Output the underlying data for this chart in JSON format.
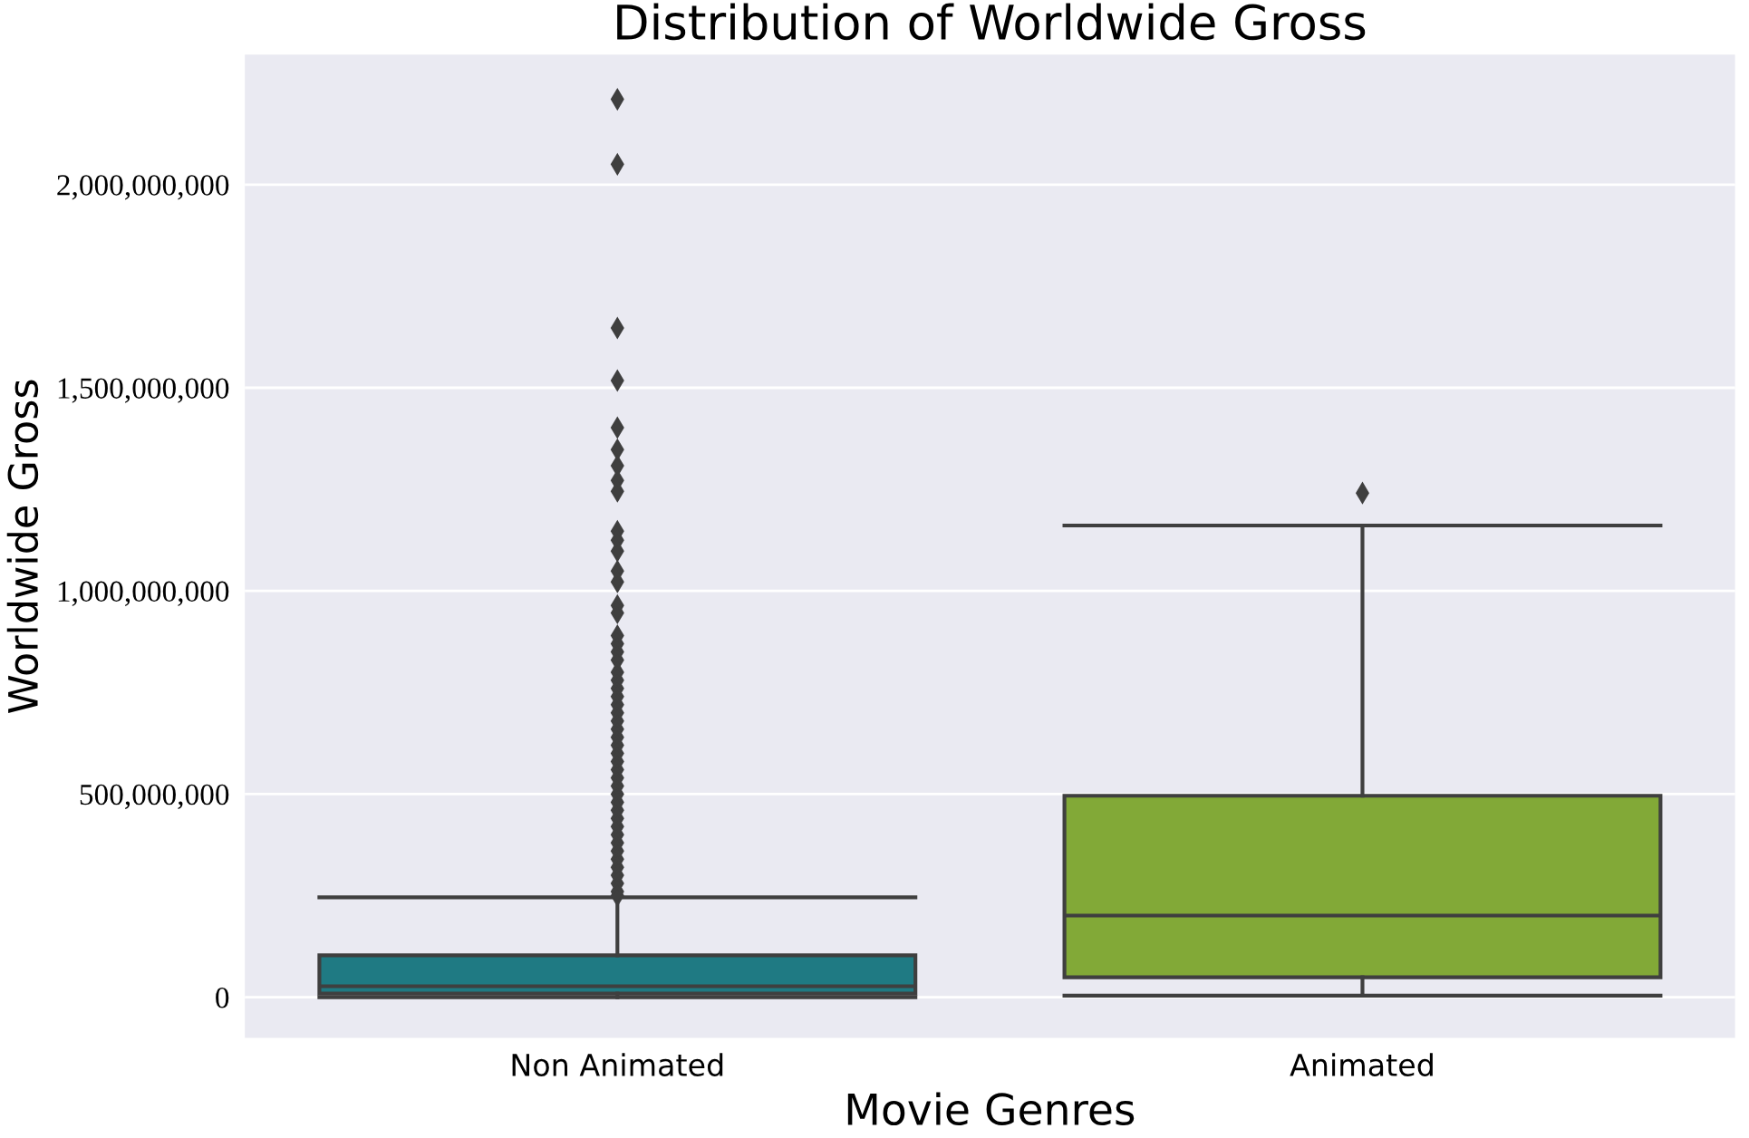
{
  "chart_data": {
    "type": "box",
    "title": "Distribution of Worldwide Gross",
    "xlabel": "Movie Genres",
    "ylabel": "Worldwide Gross",
    "categories": [
      "Non Animated",
      "Animated"
    ],
    "colors": [
      "#1f7a83",
      "#82a937"
    ],
    "boxes": [
      {
        "low": 0,
        "q1": 9000000,
        "median": 27000000,
        "q3": 103000000,
        "high": 246000000,
        "outliers": [
          2210000000,
          2050000000,
          1647000000,
          1518000000,
          1402000000,
          1348000000,
          1308000000,
          1272000000,
          1245000000,
          1147000000,
          1125000000,
          1098000000,
          1049000000,
          1022000000,
          964000000,
          946000000,
          890000000,
          870000000,
          850000000,
          830000000,
          800000000,
          780000000,
          760000000,
          740000000,
          720000000,
          700000000,
          680000000,
          660000000,
          640000000,
          620000000,
          600000000,
          580000000,
          560000000,
          540000000,
          520000000,
          500000000,
          480000000,
          460000000,
          440000000,
          420000000,
          400000000,
          380000000,
          360000000,
          340000000,
          320000000,
          300000000,
          280000000,
          260000000,
          250000000
        ]
      },
      {
        "low": 4000000,
        "q1": 49000000,
        "median": 201000000,
        "q3": 496000000,
        "high": 1161000000,
        "outliers": [
          1241000000
        ]
      }
    ],
    "ylim": [
      -100000000,
      2320000000
    ],
    "yticks": [
      {
        "value": 0,
        "label": "0"
      },
      {
        "value": 500000000,
        "label": "500,000,000"
      },
      {
        "value": 1000000000,
        "label": "1,000,000,000"
      },
      {
        "value": 1500000000,
        "label": "1,500,000,000"
      },
      {
        "value": 2000000000,
        "label": "2,000,000,000"
      }
    ],
    "marker": "diamond",
    "grid": "y"
  }
}
